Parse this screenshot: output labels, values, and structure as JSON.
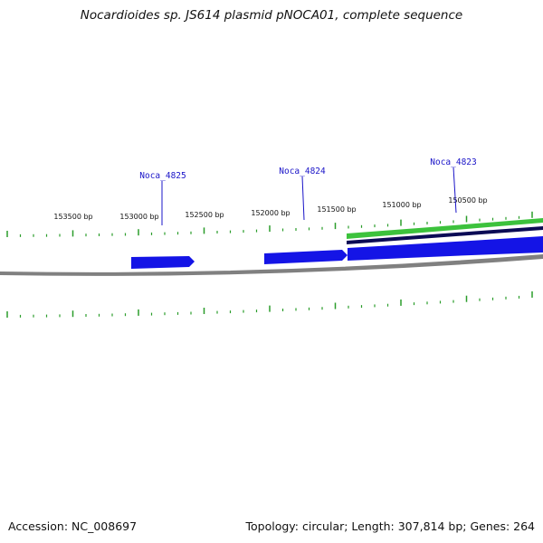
{
  "title": "Nocardioides sp. JS614 plasmid pNOCA01, complete sequence",
  "footer": {
    "accession": "Accession: NC_008697",
    "summary": "Topology: circular; Length: 307,814 bp; Genes: 264"
  },
  "colors": {
    "background": "#ffffff",
    "backbone": "#808080",
    "tick": "#2a9d2a",
    "forward_feature": "#1414e6",
    "reverse_feature": "#1414e6",
    "dark_track": "#0b0b55",
    "green_track": "#3cc23c",
    "label": "#1a14c8"
  },
  "bp_labels": [
    "153500 bp",
    "153000 bp",
    "152500 bp",
    "152000 bp",
    "151500 bp",
    "151000 bp",
    "150500 bp"
  ],
  "genes": [
    {
      "id": "noca-4825",
      "label": "Noca_4825"
    },
    {
      "id": "noca-4824",
      "label": "Noca_4824"
    },
    {
      "id": "noca-4823",
      "label": "Noca_4823"
    }
  ]
}
